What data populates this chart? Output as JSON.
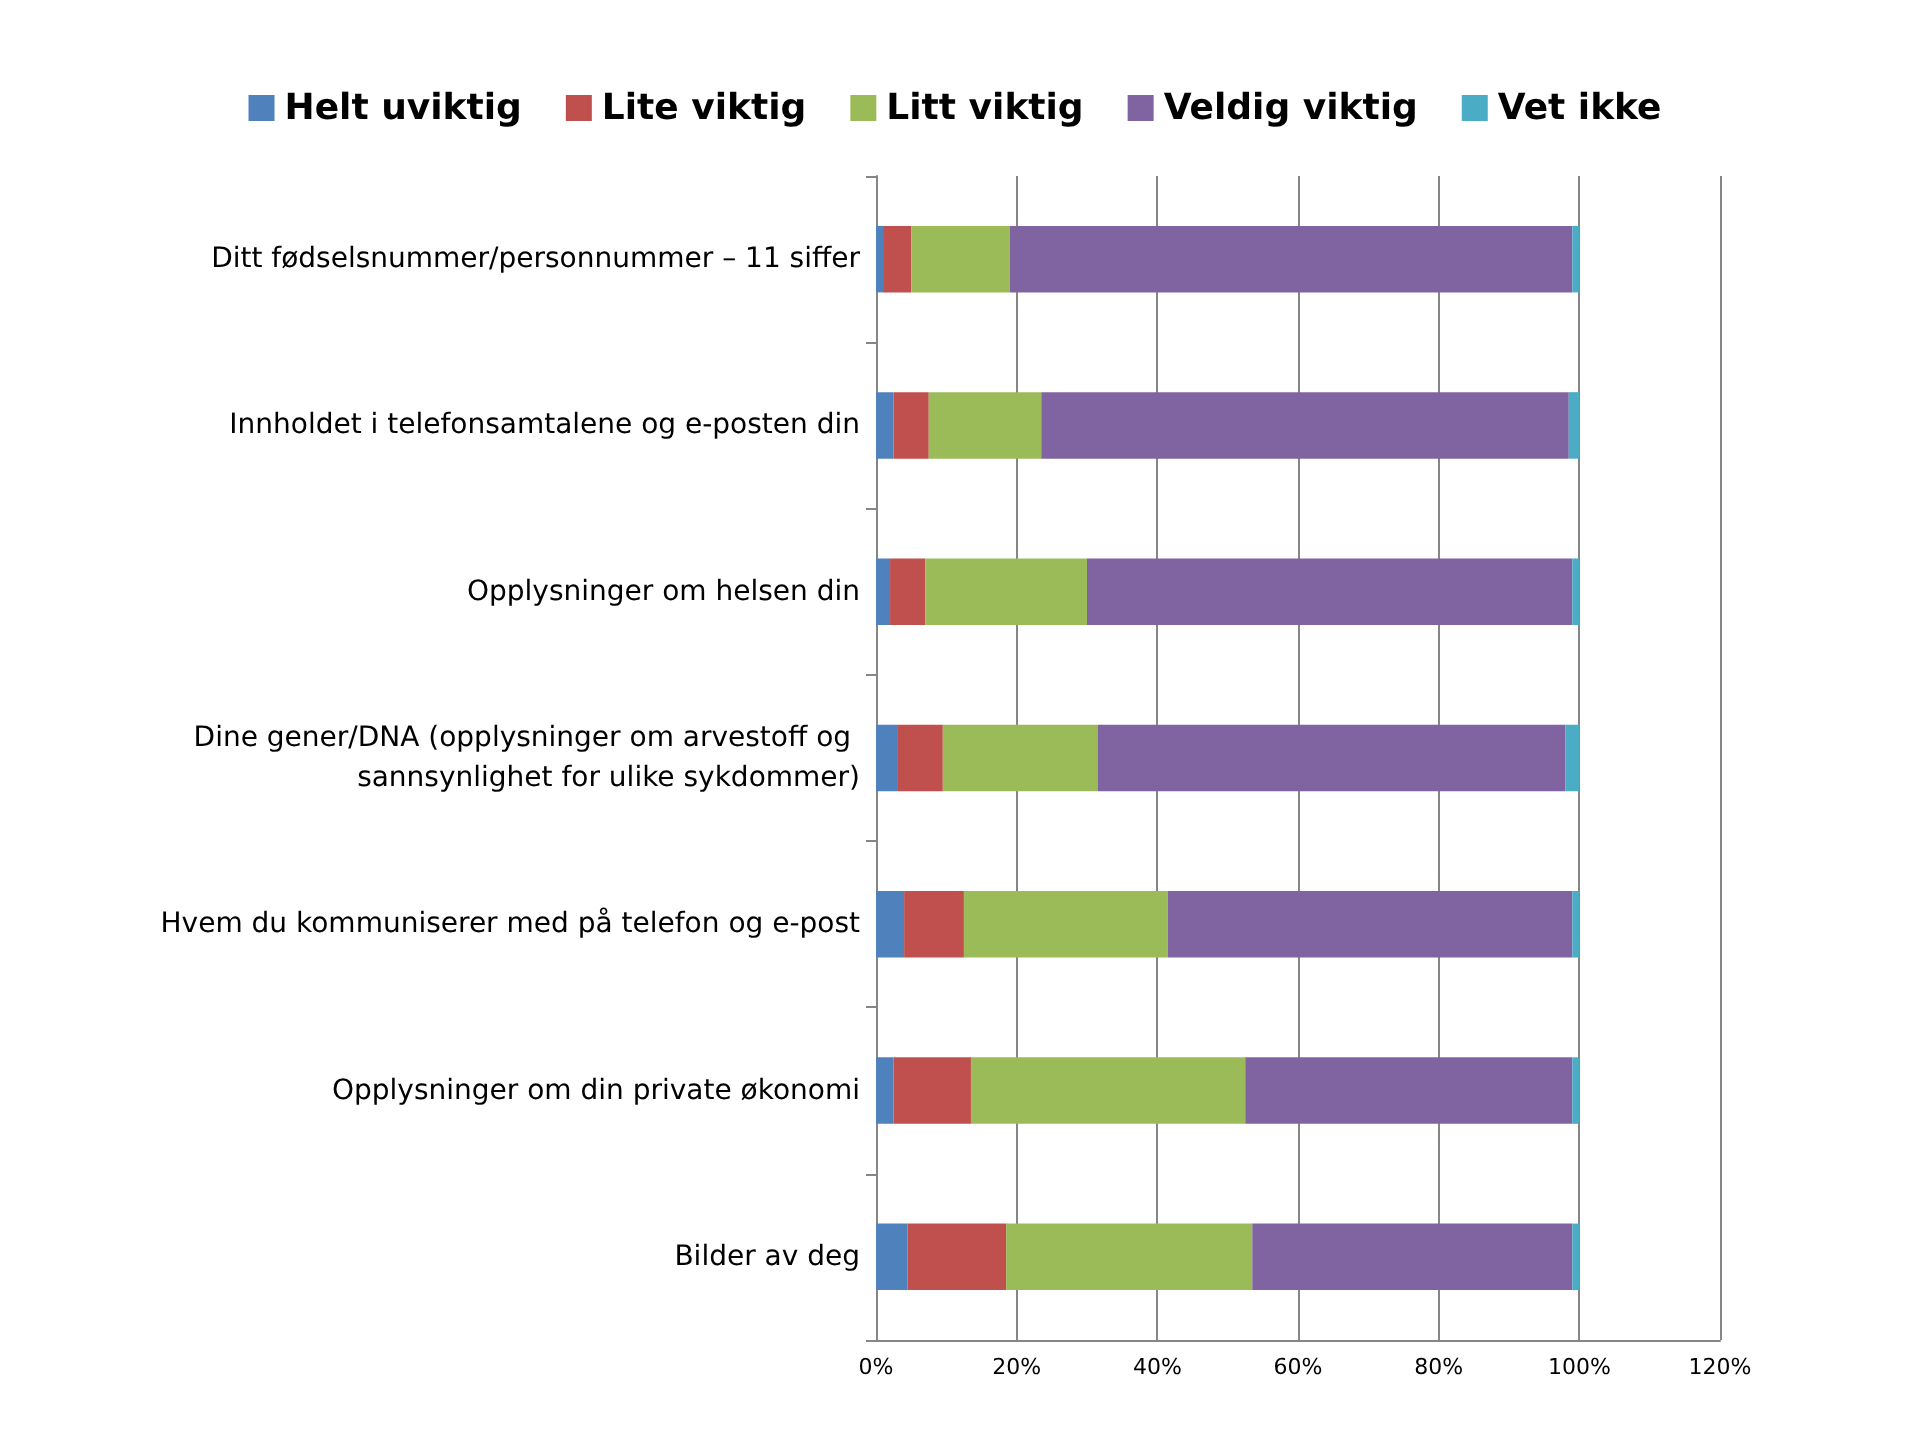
{
  "chart_data": {
    "type": "bar",
    "orientation": "horizontal",
    "stacked": true,
    "categories": [
      "Ditt fødselsnummer/personnummer – 11 siffer",
      "Innholdet i telefonsamtalene og e-posten din",
      "Opplysninger om helsen din",
      "Dine gener/DNA (opplysninger om arvestoff og sannsynlighet for ulike sykdommer)",
      "Hvem du kommuniserer med på telefon og e-post",
      "Opplysninger om din private økonomi",
      "Bilder av deg"
    ],
    "series": [
      {
        "name": "Helt uviktig",
        "color": "#4f81bd",
        "values": [
          1,
          2.5,
          2,
          3,
          4,
          2.5,
          4.5
        ]
      },
      {
        "name": "Lite viktig",
        "color": "#c0504d",
        "values": [
          4,
          5,
          5,
          6.5,
          8.5,
          11,
          14
        ]
      },
      {
        "name": "Litt viktig",
        "color": "#9bbb59",
        "values": [
          14,
          16,
          23,
          22,
          29,
          39,
          35
        ]
      },
      {
        "name": "Veldig viktig",
        "color": "#8064a2",
        "values": [
          80,
          75,
          69,
          66.5,
          57.5,
          46.5,
          45.5
        ]
      },
      {
        "name": "Vet ikke",
        "color": "#4bacc6",
        "values": [
          1,
          1.5,
          1,
          2,
          1,
          1,
          1
        ]
      }
    ],
    "xlim": [
      0,
      120
    ],
    "xticks": [
      {
        "value": 0,
        "label": "0%"
      },
      {
        "value": 20,
        "label": "20%"
      },
      {
        "value": 40,
        "label": "40%"
      },
      {
        "value": 60,
        "label": "60%"
      },
      {
        "value": 80,
        "label": "80%"
      },
      {
        "value": 100,
        "label": "100%"
      },
      {
        "value": 120,
        "label": "120%"
      }
    ],
    "grid": "x",
    "legend": "top"
  }
}
